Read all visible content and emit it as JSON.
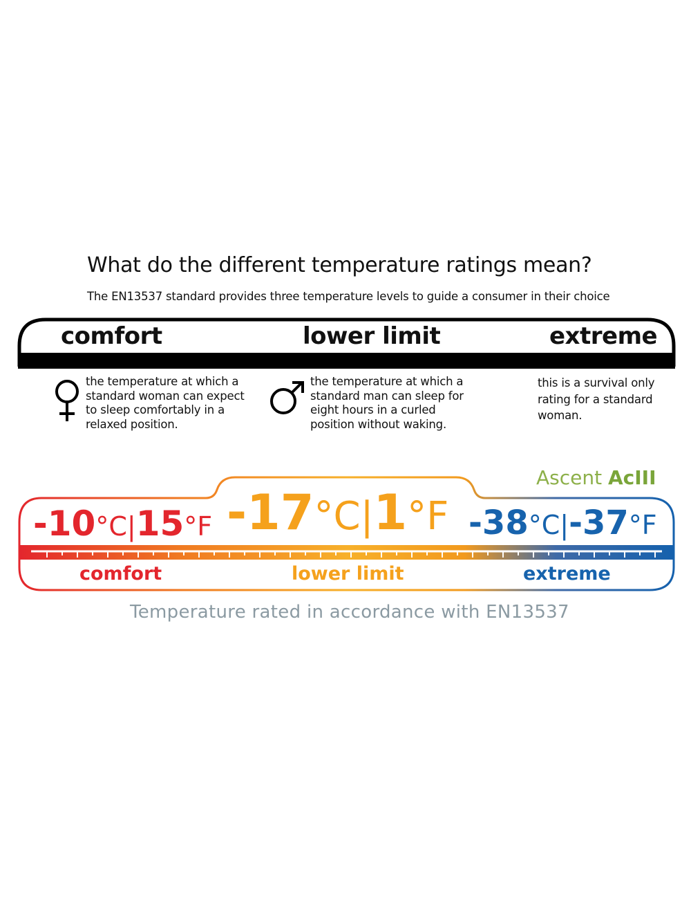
{
  "title": "What do the different temperature ratings mean?",
  "subtitle": "The EN13537 standard provides three temperature levels to guide a consumer in their choice",
  "levels": [
    {
      "label": "comfort",
      "icon": "female-symbol-icon",
      "description": "the temperature at which a\nstandard woman can expect\nto sleep comfortably in a\nrelaxed position."
    },
    {
      "label": "lower limit",
      "icon": "male-symbol-icon",
      "description": "the temperature at which a\nstandard man can sleep for\neight hours in a curled\nposition without waking."
    },
    {
      "label": "extreme",
      "description": "this is a survival only\nrating for a standard\nwoman."
    }
  ],
  "brand": {
    "name": "Ascent",
    "model": "AcIII"
  },
  "ratings": [
    {
      "label": "comfort",
      "celsius": "-10",
      "fahrenheit": "15",
      "c_unit": "°C",
      "f_unit": "°F",
      "color": "#e3262d"
    },
    {
      "label": "lower limit",
      "celsius": "-17",
      "fahrenheit": "1",
      "c_unit": "°C",
      "f_unit": "°F",
      "color": "#f5a11c"
    },
    {
      "label": "extreme",
      "celsius": "-38",
      "fahrenheit": "-37",
      "c_unit": "°C",
      "f_unit": "°F",
      "color": "#1763ad"
    }
  ],
  "separator": "|",
  "footer": "Temperature rated in accordance with EN13537"
}
